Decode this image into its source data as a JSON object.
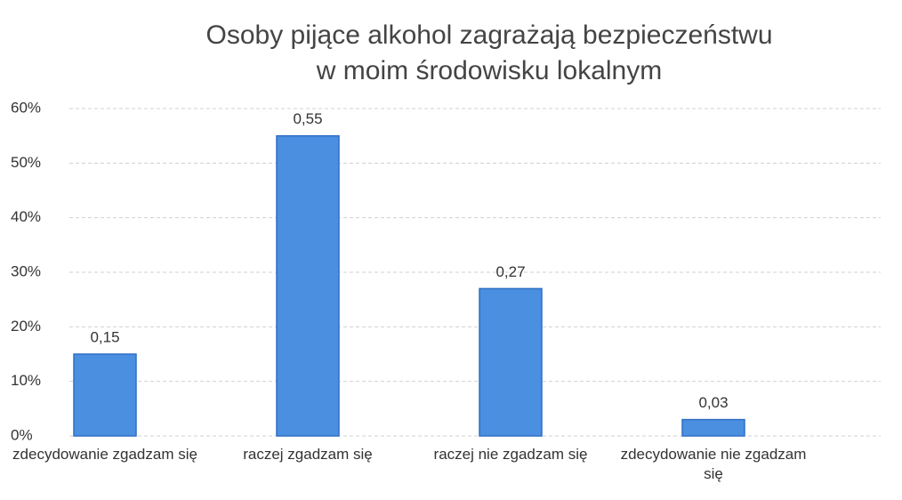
{
  "chart_data": {
    "type": "bar",
    "title": "Osoby pijące alkohol zagrażają bezpieczeństwu\nw moim środowisku lokalnym",
    "categories": [
      "zdecydowanie zgadzam się",
      "raczej zgadzam się",
      "raczej nie zgadzam się",
      "zdecydowanie nie zgadzam się"
    ],
    "values": [
      15,
      55,
      27,
      3
    ],
    "value_labels": [
      "0,15",
      "0,55",
      "0,27",
      "0,03"
    ],
    "color": "#4a8fe0",
    "ylim": [
      0,
      60
    ],
    "yticks": [
      {
        "value": 0,
        "label": "0%"
      },
      {
        "value": 10,
        "label": "10%"
      },
      {
        "value": 20,
        "label": "20%"
      },
      {
        "value": 30,
        "label": "30%"
      },
      {
        "value": 40,
        "label": "40%"
      },
      {
        "value": 50,
        "label": "50%"
      },
      {
        "value": 60,
        "label": "60%"
      }
    ],
    "grid": true
  }
}
